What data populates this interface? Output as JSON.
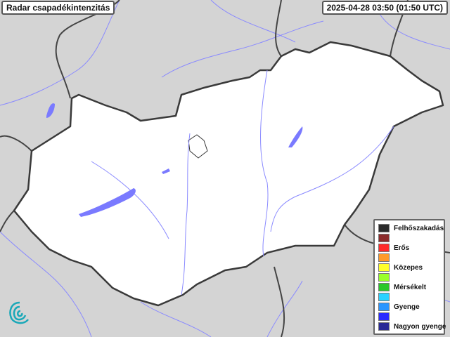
{
  "title": "Radar csapadékintenzitás",
  "timestamp": "2025-04-28 03:50 (01:50 UTC)",
  "legend": [
    {
      "label": "Felhőszakadás",
      "color": "#2b2b2b"
    },
    {
      "label": "",
      "color": "#8b2a2a"
    },
    {
      "label": "Erős",
      "color": "#ff2a2a"
    },
    {
      "label": "",
      "color": "#ff9a2a"
    },
    {
      "label": "Közepes",
      "color": "#ffff2a"
    },
    {
      "label": "",
      "color": "#9aff2a"
    },
    {
      "label": "Mérsékelt",
      "color": "#2ac82a"
    },
    {
      "label": "",
      "color": "#2ad2ff"
    },
    {
      "label": "Gyenge",
      "color": "#2a96ff"
    },
    {
      "label": "",
      "color": "#2a2aff"
    },
    {
      "label": "Nagyon gyenge",
      "color": "#2a2a96"
    }
  ],
  "colors": {
    "background": "#d4d4d4",
    "country": "#ffffff",
    "border": "#444444",
    "water": "#7a7aff"
  }
}
